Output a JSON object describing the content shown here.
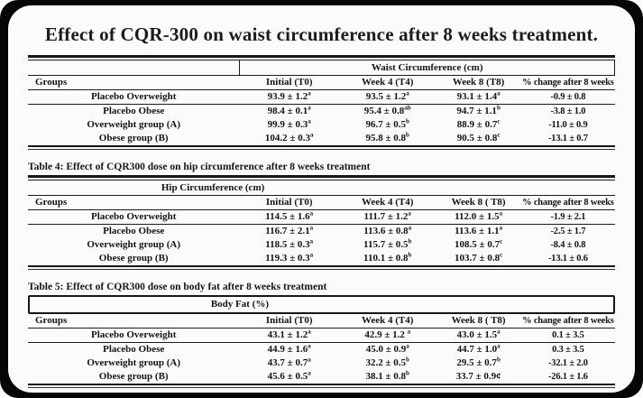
{
  "slide": {
    "title": "Effect of CQR-300 on waist circumference after 8 weeks treatment."
  },
  "tables": [
    {
      "key": "waist",
      "caption": null,
      "span_header": "Waist Circumference  (cm)",
      "columns": [
        "Groups",
        "Initial (T0)",
        "Week 4  (T4)",
        "Week 8 (T8)",
        "% change  after 8 weeks"
      ],
      "rows": [
        {
          "group": "Placebo Overweight",
          "initial": {
            "v": "93.9 ± 1.2",
            "sup": "a"
          },
          "week4": {
            "v": "93.5 ± 1.2",
            "sup": "a"
          },
          "week8": {
            "v": "93.1 ± 1.4",
            "sup": "a"
          },
          "change": "-0.9 ± 0.8"
        },
        {
          "group": "Placebo Obese",
          "initial": {
            "v": "98.4 ± 0.1",
            "sup": "a"
          },
          "week4": {
            "v": "95.4 ± 0.8",
            "sup": "ab"
          },
          "week8": {
            "v": "94.7 ± 1.1",
            "sup": "b"
          },
          "change": "-3.8 ± 1.0"
        },
        {
          "group": "Overweight  group (A)",
          "initial": {
            "v": "99.9 ± 0.3",
            "sup": "a"
          },
          "week4": {
            "v": "96.7 ± 0.5",
            "sup": "b"
          },
          "week8": {
            "v": "88.9 ± 0.7",
            "sup": "c"
          },
          "change": "-11.0 ± 0.9"
        },
        {
          "group": "Obese group (B)",
          "initial": {
            "v": "104.2 ± 0.3",
            "sup": "a"
          },
          "week4": {
            "v": "95.8 ± 0.8",
            "sup": "b"
          },
          "week8": {
            "v": "90.5 ± 0.8",
            "sup": "c"
          },
          "change": "-13.1 ± 0.7"
        }
      ]
    },
    {
      "key": "hip",
      "caption": {
        "label": "Table 4:",
        "text": " Effect of CQR300 dose on hip circumference after 8 weeks treatment"
      },
      "span_header": "Hip Circumference (cm)",
      "columns": [
        "Groups",
        "Initial (T0)",
        "Week 4  (T4)",
        "Week 8 ( T8)",
        "% change  after 8 weeks"
      ],
      "rows": [
        {
          "group": "Placebo Overweight",
          "initial": {
            "v": "114.5 ± 1.6",
            "sup": "a"
          },
          "week4": {
            "v": "111.7 ± 1.2",
            "sup": "a"
          },
          "week8": {
            "v": "112.0 ± 1.5",
            "sup": "a"
          },
          "change": "-1.9 ± 2.1"
        },
        {
          "group": "Placebo Obese",
          "initial": {
            "v": "116.7 ± 2.1",
            "sup": "a"
          },
          "week4": {
            "v": "113.6 ± 0.8",
            "sup": "a"
          },
          "week8": {
            "v": "113.6 ± 1.1",
            "sup": "a"
          },
          "change": "-2.5 ± 1.7"
        },
        {
          "group": "Overweight  group (A)",
          "initial": {
            "v": "118.5 ± 0.3",
            "sup": "a"
          },
          "week4": {
            "v": "115.7 ± 0.5",
            "sup": "b"
          },
          "week8": {
            "v": "108.5 ± 0.7",
            "sup": "c"
          },
          "change": "-8.4 ± 0.8"
        },
        {
          "group": "Obese group (B)",
          "initial": {
            "v": "119.3 ± 0.3",
            "sup": "a"
          },
          "week4": {
            "v": "110.1 ± 0.8",
            "sup": "b"
          },
          "week8": {
            "v": "103.7 ± 0.8",
            "sup": "c"
          },
          "change": "-13.1 ± 0.6"
        }
      ]
    },
    {
      "key": "bodyfat",
      "caption": {
        "label": "Table 5:",
        "text": " Effect of CQR300 dose on body fat after 8 weeks treatment"
      },
      "span_header": "Body Fat (%)",
      "columns": [
        "Groups",
        "Initial (T0)",
        "Week 4  (T4)",
        "Week 8 ( T8)",
        "% change after 8 weeks"
      ],
      "rows": [
        {
          "group": "Placebo Overweight",
          "initial": {
            "v": "43.1 ± 1.2",
            "sup": "a"
          },
          "week4": {
            "v": "42.9 ± 1.2 ",
            "sup": "a"
          },
          "week8": {
            "v": "43.0 ± 1.5",
            "sup": "a"
          },
          "change": "0.1 ± 3.5"
        },
        {
          "group": "Placebo  Obese",
          "initial": {
            "v": "44.9 ± 1.6",
            "sup": "a"
          },
          "week4": {
            "v": "45.0 ± 0.9",
            "sup": "a"
          },
          "week8": {
            "v": "44.7 ± 1.0",
            "sup": "a"
          },
          "change": "0.3 ± 3.5"
        },
        {
          "group": "Overweight  group (A)",
          "initial": {
            "v": "43.7 ± 0.7",
            "sup": "a"
          },
          "week4": {
            "v": "32.2 ± 0.5",
            "sup": "b"
          },
          "week8": {
            "v": "29.5 ± 0.7",
            "sup": "b"
          },
          "change": "-32.1 ± 2.0"
        },
        {
          "group": "Obese  group (B)",
          "initial": {
            "v": "45.6 ± 0.5",
            "sup": "a"
          },
          "week4": {
            "v": "38.1 ± 0.8",
            "sup": "b"
          },
          "week8": {
            "v": "33.7 ± 0.9¢",
            "sup": ""
          },
          "change": "-26.1 ± 1.6"
        }
      ]
    }
  ]
}
